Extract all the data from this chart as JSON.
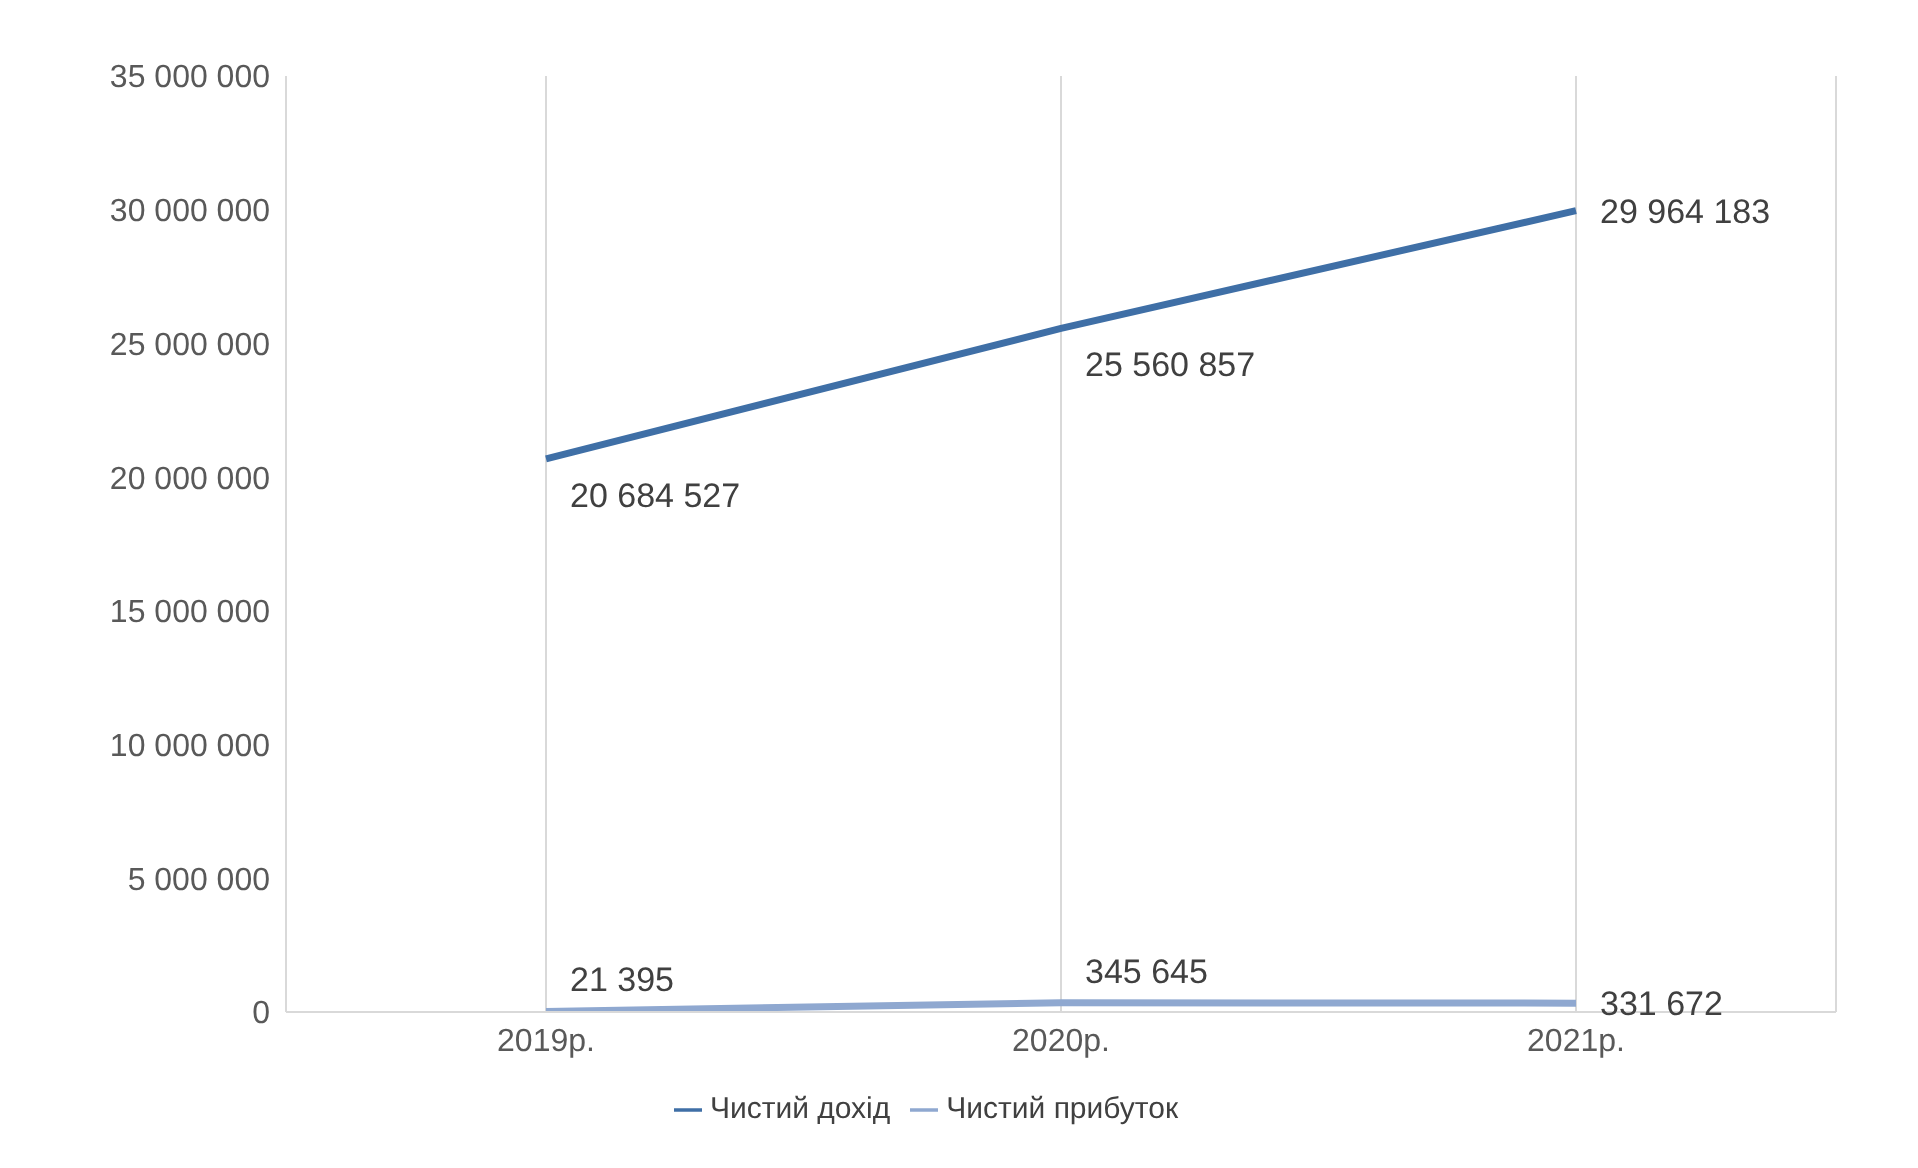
{
  "chart_data": {
    "type": "line",
    "categories": [
      "2019р.",
      "2020р.",
      "2021р."
    ],
    "series": [
      {
        "name": "Чистий дохід",
        "color": "#3f6fa6",
        "values": [
          20684527,
          25560857,
          29964183
        ],
        "value_labels": [
          "20 684 527",
          "25 560 857",
          "29 964 183"
        ]
      },
      {
        "name": "Чистий прибуток",
        "color": "#8fa8d0",
        "values": [
          21395,
          345645,
          331672
        ],
        "value_labels": [
          "21 395",
          "345 645",
          "331 672"
        ]
      }
    ],
    "ylim": [
      0,
      35000000
    ],
    "yticks": [
      {
        "value": 0,
        "label": "0"
      },
      {
        "value": 5000000,
        "label": "5 000 000"
      },
      {
        "value": 10000000,
        "label": "10 000 000"
      },
      {
        "value": 15000000,
        "label": "15 000 000"
      },
      {
        "value": 20000000,
        "label": "20 000 000"
      },
      {
        "value": 25000000,
        "label": "25 000 000"
      },
      {
        "value": 30000000,
        "label": "30 000 000"
      },
      {
        "value": 35000000,
        "label": "35 000 000"
      }
    ],
    "grid": "x",
    "legend": "bottom",
    "marker": "none",
    "line_style": "solid"
  }
}
